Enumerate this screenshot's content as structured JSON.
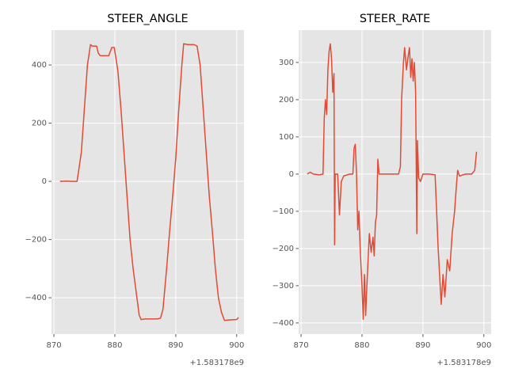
{
  "chart_data": [
    {
      "type": "line",
      "title": "STEER_ANGLE",
      "color": "#E24A33",
      "grid": true,
      "x_offset_label": "+1.583178e9",
      "xlim": [
        869.6,
        901.2
      ],
      "xticks": [
        870,
        880,
        890,
        900
      ],
      "ylim": [
        -525,
        520
      ],
      "yticks": [
        {
          "value": -400,
          "label": "−400"
        },
        {
          "value": -200,
          "label": "−200"
        },
        0,
        200,
        400
      ],
      "x": [
        871,
        872,
        873,
        873.8,
        874.5,
        875,
        875.5,
        876,
        876.3,
        877,
        877.3,
        877.6,
        879,
        879.5,
        879.9,
        880.5,
        881,
        881.5,
        882,
        882.5,
        883,
        883.5,
        884,
        884.3,
        885,
        886,
        887,
        887.5,
        887.9,
        888.5,
        889,
        889.5,
        890,
        890.5,
        891,
        891.3,
        892,
        893,
        893.5,
        894,
        894.5,
        895,
        895.5,
        896,
        896.5,
        897,
        897.5,
        898,
        899,
        900,
        900.3
      ],
      "values": [
        0,
        1,
        0,
        0,
        100,
        250,
        400,
        470,
        465,
        465,
        440,
        432,
        432,
        460,
        460,
        380,
        250,
        100,
        -50,
        -200,
        -300,
        -380,
        -460,
        -475,
        -473,
        -473,
        -473,
        -470,
        -440,
        -300,
        -170,
        -50,
        80,
        250,
        400,
        473,
        470,
        470,
        465,
        400,
        250,
        100,
        -50,
        -170,
        -300,
        -400,
        -450,
        -478,
        -476,
        -475,
        -468
      ]
    },
    {
      "type": "line",
      "title": "STEER_RATE",
      "color": "#E24A33",
      "grid": true,
      "x_offset_label": "+1.583178e9",
      "xlim": [
        869.6,
        901.2
      ],
      "xticks": [
        870,
        880,
        890,
        900
      ],
      "ylim": [
        -430,
        387
      ],
      "yticks": [
        {
          "value": -400,
          "label": "−400"
        },
        {
          "value": -300,
          "label": "−300"
        },
        {
          "value": -200,
          "label": "−200"
        },
        {
          "value": -100,
          "label": "−100"
        },
        0,
        100,
        200,
        300
      ],
      "x": [
        871,
        871.5,
        872,
        873,
        873.6,
        873.8,
        874,
        874.2,
        874.4,
        874.6,
        874.8,
        875,
        875.2,
        875.4,
        875.5,
        875.6,
        876,
        876.3,
        876.6,
        877,
        878,
        878.5,
        878.7,
        878.9,
        879.1,
        879.3,
        879.5,
        879.7,
        880,
        880.2,
        880.4,
        880.6,
        880.8,
        881.2,
        881.5,
        881.8,
        882,
        882.2,
        882.4,
        882.6,
        882.8,
        883,
        884,
        885,
        886,
        886.3,
        886.5,
        886.8,
        887,
        887.3,
        887.6,
        887.8,
        888,
        888.2,
        888.4,
        888.6,
        888.8,
        889,
        889.1,
        889.3,
        889.6,
        890,
        891,
        892,
        892.5,
        893,
        893.3,
        893.6,
        894,
        894.4,
        894.8,
        895.2,
        895.5,
        895.7,
        896,
        897,
        898,
        898.5,
        898.8
      ],
      "values": [
        0,
        5,
        0,
        -2,
        0,
        150,
        200,
        160,
        280,
        330,
        350,
        310,
        220,
        270,
        -190,
        0,
        0,
        -110,
        -20,
        -5,
        0,
        0,
        70,
        80,
        0,
        -150,
        -100,
        -200,
        -300,
        -390,
        -270,
        -380,
        -300,
        -160,
        -210,
        -170,
        -220,
        -130,
        -110,
        40,
        0,
        0,
        0,
        0,
        0,
        20,
        200,
        300,
        340,
        280,
        320,
        340,
        260,
        310,
        250,
        300,
        220,
        -160,
        90,
        -10,
        -20,
        0,
        0,
        -2,
        -200,
        -350,
        -270,
        -330,
        -230,
        -260,
        -160,
        -100,
        -30,
        10,
        -5,
        0,
        0,
        10,
        60
      ]
    }
  ]
}
